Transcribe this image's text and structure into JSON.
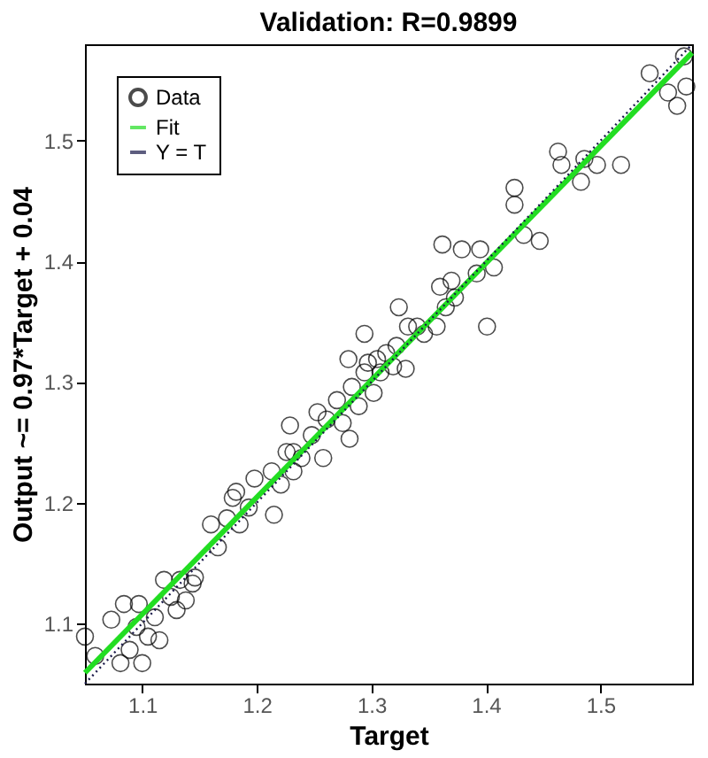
{
  "chart_data": {
    "type": "scatter",
    "title": "Validation: R=0.9899",
    "xlabel": "Target",
    "ylabel": "Output ~= 0.97*Target + 0.04",
    "xlim": [
      1.05,
      1.58
    ],
    "ylim": [
      1.05,
      1.58
    ],
    "xticks": [
      1.1,
      1.2,
      1.3,
      1.4,
      1.5
    ],
    "yticks": [
      1.1,
      1.2,
      1.3,
      1.4,
      1.5
    ],
    "grid": false,
    "legend": "top left",
    "series": [
      {
        "name": "Data",
        "type": "scatter",
        "marker": "circle",
        "color": "#000000",
        "x": [
          1.05,
          1.059,
          1.073,
          1.081,
          1.084,
          1.089,
          1.095,
          1.1,
          1.105,
          1.097,
          1.111,
          1.115,
          1.119,
          1.125,
          1.133,
          1.138,
          1.144,
          1.146,
          1.13,
          1.16,
          1.166,
          1.174,
          1.179,
          1.185,
          1.193,
          1.198,
          1.215,
          1.213,
          1.221,
          1.226,
          1.229,
          1.232,
          1.239,
          1.248,
          1.253,
          1.258,
          1.261,
          1.27,
          1.275,
          1.281,
          1.283,
          1.289,
          1.294,
          1.297,
          1.302,
          1.305,
          1.308,
          1.313,
          1.319,
          1.324,
          1.33,
          1.332,
          1.34,
          1.346,
          1.357,
          1.36,
          1.362,
          1.365,
          1.37,
          1.373,
          1.379,
          1.392,
          1.395,
          1.401,
          1.407,
          1.425,
          1.425,
          1.433,
          1.447,
          1.463,
          1.466,
          1.483,
          1.486,
          1.497,
          1.518,
          1.543,
          1.559,
          1.567,
          1.573,
          1.575,
          1.28,
          1.294,
          1.322,
          1.232,
          1.182
        ],
        "values": [
          1.089,
          1.073,
          1.103,
          1.067,
          1.116,
          1.078,
          1.097,
          1.067,
          1.089,
          1.116,
          1.105,
          1.086,
          1.136,
          1.122,
          1.136,
          1.119,
          1.133,
          1.138,
          1.111,
          1.182,
          1.163,
          1.187,
          1.204,
          1.182,
          1.196,
          1.22,
          1.19,
          1.226,
          1.215,
          1.242,
          1.264,
          1.226,
          1.237,
          1.256,
          1.275,
          1.237,
          1.269,
          1.285,
          1.266,
          1.253,
          1.296,
          1.28,
          1.34,
          1.316,
          1.291,
          1.319,
          1.308,
          1.324,
          1.313,
          1.362,
          1.311,
          1.346,
          1.346,
          1.34,
          1.346,
          1.379,
          1.414,
          1.362,
          1.384,
          1.37,
          1.41,
          1.39,
          1.41,
          1.346,
          1.395,
          1.461,
          1.447,
          1.422,
          1.417,
          1.491,
          1.48,
          1.466,
          1.485,
          1.48,
          1.48,
          1.556,
          1.54,
          1.529,
          1.57,
          1.545,
          1.319,
          1.308,
          1.33,
          1.242,
          1.209
        ]
      },
      {
        "name": "Fit",
        "type": "line",
        "line_style": "solid",
        "color": "#22dd22",
        "x": [
          1.05,
          1.58
        ],
        "values": [
          1.059,
          1.573
        ]
      },
      {
        "name": "Y = T",
        "type": "line",
        "line_style": "dotted",
        "color": "#1a1a4a",
        "x": [
          1.05,
          1.58
        ],
        "values": [
          1.05,
          1.58
        ]
      }
    ]
  }
}
